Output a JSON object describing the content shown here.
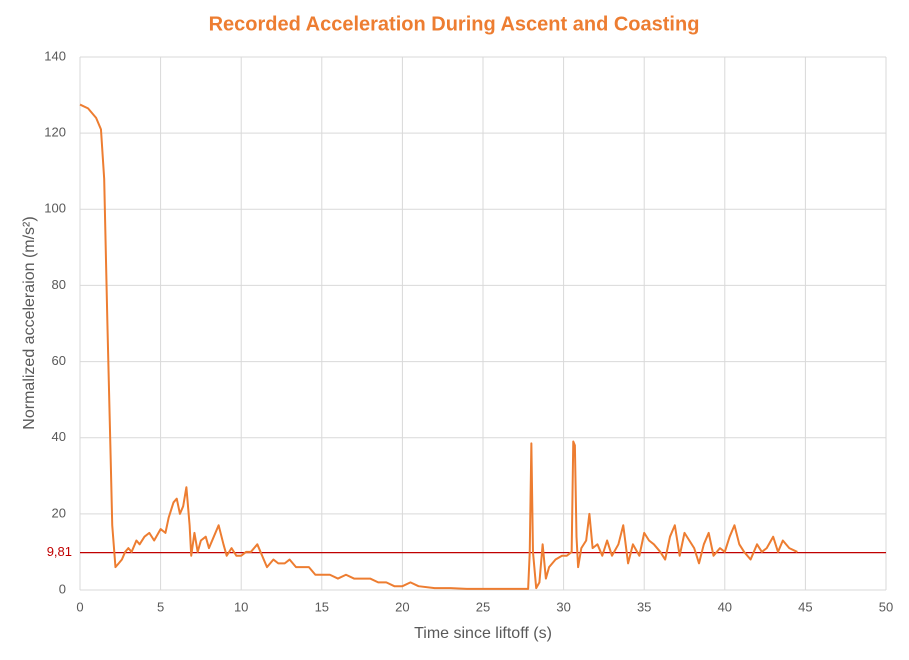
{
  "chart_data": {
    "type": "line",
    "title": "Recorded Acceleration During Ascent and Coasting",
    "x_label": "Time since liftoff (s)",
    "y_label": "Normalized acceleraion (m/s²)",
    "xlim": [
      0,
      50
    ],
    "xticks": [
      0,
      5,
      10,
      15,
      20,
      25,
      30,
      35,
      40,
      45,
      50
    ],
    "ylim": [
      0,
      140
    ],
    "yticks": [
      0,
      20,
      40,
      60,
      80,
      100,
      120,
      140
    ],
    "grid": true,
    "reference_line": {
      "value": 9.81,
      "label": "9,81",
      "color": "#c00000"
    },
    "x": [
      0,
      0.5,
      1,
      1.3,
      1.5,
      1.7,
      1.9,
      2.0,
      2.2,
      2.4,
      2.6,
      2.8,
      3.0,
      3.2,
      3.5,
      3.7,
      4.0,
      4.3,
      4.6,
      5.0,
      5.3,
      5.5,
      5.8,
      6.0,
      6.2,
      6.4,
      6.6,
      6.8,
      6.9,
      7.1,
      7.3,
      7.5,
      7.8,
      8.0,
      8.3,
      8.6,
      8.9,
      9.1,
      9.4,
      9.7,
      10.0,
      10.3,
      10.6,
      11.0,
      11.3,
      11.6,
      12.0,
      12.3,
      12.7,
      13.0,
      13.4,
      13.8,
      14.2,
      14.6,
      15.0,
      15.5,
      16.0,
      16.5,
      17.0,
      17.5,
      18.0,
      18.5,
      19.0,
      19.5,
      20.0,
      20.5,
      21,
      22,
      23,
      24,
      25,
      26,
      27,
      27.8,
      27.9,
      28.0,
      28.1,
      28.3,
      28.5,
      28.7,
      28.9,
      29.1,
      29.5,
      29.9,
      30.2,
      30.5,
      30.6,
      30.7,
      30.8,
      30.9,
      31.1,
      31.4,
      31.6,
      31.8,
      32.1,
      32.4,
      32.7,
      33.0,
      33.4,
      33.7,
      34.0,
      34.3,
      34.7,
      35.0,
      35.3,
      35.6,
      36.0,
      36.3,
      36.6,
      36.9,
      37.2,
      37.5,
      37.8,
      38.1,
      38.4,
      38.7,
      39.0,
      39.3,
      39.7,
      40.0,
      40.3,
      40.6,
      40.9,
      41.2,
      41.6,
      42.0,
      42.3,
      42.6,
      43.0,
      43.3,
      43.6,
      44.0,
      44.5
    ],
    "series": [
      {
        "name": "Acceleration",
        "color": "#ed7d31",
        "values": [
          127.5,
          126.5,
          124,
          121,
          108,
          70,
          35,
          17,
          6,
          7,
          8,
          10,
          11,
          10,
          13,
          12,
          14,
          15,
          13,
          16,
          15,
          19,
          23,
          24,
          20,
          22,
          27,
          17,
          9,
          15,
          10,
          13,
          14,
          11,
          14,
          17,
          12,
          9,
          11,
          9,
          9,
          10,
          10,
          12,
          9,
          6,
          8,
          7,
          7,
          8,
          6,
          6,
          6,
          4,
          4,
          4,
          3,
          4,
          3,
          3,
          3,
          2,
          2,
          1,
          1,
          2,
          1,
          0.5,
          0.5,
          0.3,
          0.3,
          0.3,
          0.3,
          0.3,
          10,
          38.5,
          10,
          0.5,
          2,
          12,
          3,
          6,
          8,
          9,
          9,
          10,
          39,
          38,
          14,
          6,
          11,
          13,
          20,
          11,
          12,
          9,
          13,
          9,
          12,
          17,
          7,
          12,
          9,
          15,
          13,
          12,
          10,
          8,
          14,
          17,
          9,
          15,
          13,
          11,
          7,
          12,
          15,
          9,
          11,
          10,
          14,
          17,
          12,
          10,
          8,
          12,
          10,
          11,
          14,
          10,
          13,
          11,
          10
        ]
      }
    ]
  }
}
